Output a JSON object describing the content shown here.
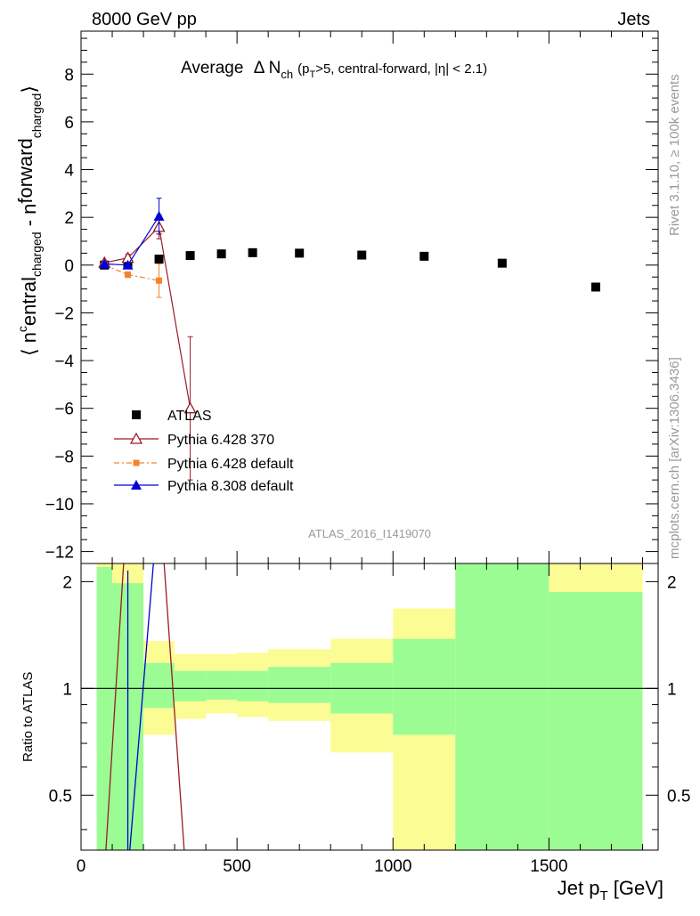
{
  "header": {
    "left": "8000 GeV pp",
    "right": "Jets"
  },
  "side_labels": {
    "rivet": "Rivet 3.1.10, ≥ 100k events",
    "mcplots": "mcplots.cern.ch [arXiv:1306.3436]"
  },
  "watermark": "ATLAS_2016_I1419070",
  "colors": {
    "atlas": "#000000",
    "py6_370": "#9b1b25",
    "py6_default": "#f5822d",
    "py8_default": "#0000d6",
    "band_green": "#9cfc94",
    "band_yellow": "#fcfc94"
  },
  "chart_data": [
    {
      "type": "scatter",
      "title": "Average Δ N_ch (p_T>5, central-forward, |η| < 2.1)",
      "title_parts": {
        "main": "Average",
        "delta": "Δ N",
        "sub_ch": "ch",
        "paren_open": "(p",
        "sub_T": "T",
        "paren_rest": ">5, central-forward, |η| < 2.1)"
      },
      "ylabel": "⟨ n^central_charged - n^forward_charged ⟩",
      "ylabel_parts": {
        "bracket_open": "⟨ n",
        "sup_c": "c",
        "entral": "entral",
        "sub_charged1": "charged",
        "minus": " - n",
        "forward": "forward",
        "sub_charged2": "charged",
        "bracket_close": "⟩"
      },
      "xlim": [
        0,
        1850
      ],
      "ylim": [
        -12.5,
        9.8
      ],
      "yticks": [
        "−12",
        "−10",
        "−8",
        "−6",
        "−4",
        "−2",
        "0",
        "2",
        "4",
        "6",
        "8"
      ],
      "ytick_values": [
        -12,
        -10,
        -8,
        -6,
        -4,
        -2,
        0,
        2,
        4,
        6,
        8
      ],
      "legend": "lower-left",
      "series": [
        {
          "name": "ATLAS",
          "marker": "square",
          "x": [
            75,
            150,
            250,
            350,
            450,
            550,
            700,
            900,
            1100,
            1350,
            1650
          ],
          "y": [
            0.0,
            0.05,
            0.25,
            0.4,
            0.47,
            0.52,
            0.5,
            0.42,
            0.37,
            0.08,
            -0.92
          ],
          "yerr": [
            0.03,
            0.04,
            0.05,
            0.05,
            0.05,
            0.05,
            0.05,
            0.06,
            0.06,
            0.08,
            0.12
          ]
        },
        {
          "name": "Pythia 6.428 370",
          "marker": "triangle-open",
          "x": [
            75,
            150,
            250,
            350
          ],
          "y": [
            0.1,
            0.3,
            1.6,
            -6.0
          ],
          "yerr": [
            0.08,
            0.15,
            0.5,
            3.0
          ]
        },
        {
          "name": "Pythia 6.428 default",
          "marker": "square-small",
          "x": [
            75,
            150,
            250
          ],
          "y": [
            0.0,
            -0.4,
            -0.65
          ],
          "yerr": [
            0.05,
            0.12,
            0.7
          ]
        },
        {
          "name": "Pythia 8.308 default",
          "marker": "triangle-filled",
          "x": [
            75,
            150,
            250
          ],
          "y": [
            0.05,
            0.0,
            2.05
          ],
          "yerr": [
            0.06,
            0.1,
            0.75
          ]
        }
      ]
    },
    {
      "type": "line",
      "ylabel": "Ratio to ATLAS",
      "xlabel": "Jet p_T [GeV]",
      "xlabel_parts": {
        "main": "Jet p",
        "sub": "T",
        "unit": " [GeV]"
      },
      "xlim": [
        0,
        1850
      ],
      "ylim": [
        0.35,
        2.25
      ],
      "xticks": [
        "0",
        "500",
        "1000",
        "1500"
      ],
      "xtick_values": [
        0,
        500,
        1000,
        1500
      ],
      "yticks": [
        "0.5",
        "1",
        "2"
      ],
      "ytick_values": [
        0.5,
        1,
        2
      ],
      "bands": [
        {
          "x": [
            50,
            100
          ],
          "green": [
            0.35,
            2.2
          ],
          "yellow": [
            0.35,
            2.35
          ]
        },
        {
          "x": [
            100,
            200
          ],
          "green": [
            0.35,
            1.98
          ],
          "yellow": [
            0.35,
            2.35
          ]
        },
        {
          "x": [
            200,
            300
          ],
          "green": [
            0.88,
            1.18
          ],
          "yellow": [
            0.74,
            1.36
          ]
        },
        {
          "x": [
            300,
            400
          ],
          "green": [
            0.92,
            1.12
          ],
          "yellow": [
            0.82,
            1.25
          ]
        },
        {
          "x": [
            400,
            500
          ],
          "green": [
            0.93,
            1.12
          ],
          "yellow": [
            0.85,
            1.25
          ]
        },
        {
          "x": [
            500,
            600
          ],
          "green": [
            0.92,
            1.12
          ],
          "yellow": [
            0.83,
            1.26
          ]
        },
        {
          "x": [
            600,
            800
          ],
          "green": [
            0.91,
            1.15
          ],
          "yellow": [
            0.81,
            1.29
          ]
        },
        {
          "x": [
            800,
            1000
          ],
          "green": [
            0.85,
            1.18
          ],
          "yellow": [
            0.66,
            1.38
          ]
        },
        {
          "x": [
            1000,
            1200
          ],
          "green": [
            0.74,
            1.38
          ],
          "yellow": [
            0.35,
            1.68
          ]
        },
        {
          "x": [
            1200,
            1500
          ],
          "green": [
            0.35,
            2.35
          ],
          "yellow": [
            0.35,
            2.35
          ]
        },
        {
          "x": [
            1500,
            1800
          ],
          "green": [
            0.35,
            1.87
          ],
          "yellow": [
            0.35,
            2.35
          ]
        }
      ],
      "ratio_lines": [
        {
          "name": "Pythia 6.428 370",
          "x": [
            75,
            150,
            250,
            350
          ],
          "y": [
            0.3,
            3.5,
            3.6,
            0.2
          ]
        },
        {
          "name": "Pythia 8.308 default",
          "x": [
            150,
            250
          ],
          "y": [
            0.3,
            3.5
          ]
        },
        {
          "name": "Pythia 8.308 default err",
          "x": [
            150,
            150
          ],
          "y": [
            0.35,
            2.15
          ]
        }
      ]
    }
  ]
}
